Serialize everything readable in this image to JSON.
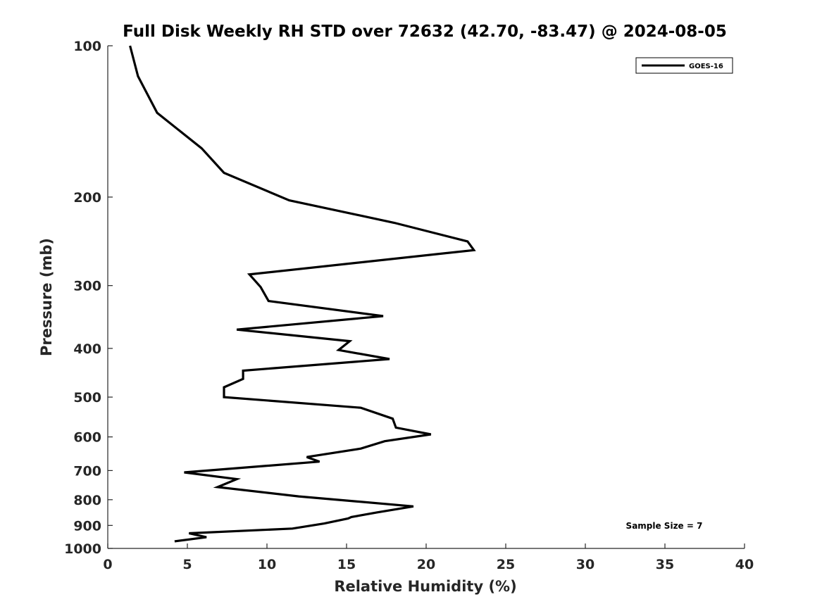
{
  "chart_data": {
    "type": "line",
    "title": "Full Disk Weekly RH STD over 72632 (42.70, -83.47) @ 2024-08-05",
    "xlabel": "Relative Humidity (%)",
    "ylabel": "Pressure (mb)",
    "xlim": [
      0,
      40
    ],
    "ylim": [
      100,
      1000
    ],
    "yscale": "log",
    "y_reversed": true,
    "grid": false,
    "xticks": [
      0,
      5,
      10,
      15,
      20,
      25,
      30,
      35,
      40
    ],
    "xtick_labels": [
      "0",
      "5",
      "10",
      "15",
      "20",
      "25",
      "30",
      "35",
      "40"
    ],
    "yticks": [
      100,
      200,
      300,
      400,
      500,
      600,
      700,
      800,
      900,
      1000
    ],
    "ytick_labels": [
      "100",
      "200",
      "300",
      "400",
      "500",
      "600",
      "700",
      "800",
      "900",
      "1000"
    ],
    "legend": {
      "position": "top-right",
      "entries": [
        "GOES-16"
      ]
    },
    "annotation": "Sample Size = 7",
    "series": [
      {
        "name": "GOES-16",
        "color": "#000000",
        "x": [
          1.4,
          1.9,
          3.1,
          5.9,
          7.3,
          11.4,
          18.0,
          22.6,
          23.0,
          8.9,
          9.6,
          10.1,
          17.3,
          8.1,
          15.2,
          14.5,
          17.7,
          8.5,
          8.5,
          7.3,
          7.3,
          15.9,
          17.9,
          18.1,
          20.3,
          17.4,
          15.9,
          12.5,
          13.3,
          4.8,
          8.1,
          6.9,
          12.0,
          19.2,
          16.9,
          15.3,
          15.1,
          13.6,
          11.6,
          5.1,
          6.2,
          4.2
        ],
        "y": [
          100,
          115,
          136,
          160,
          179,
          203,
          225,
          245,
          255,
          285,
          302,
          322,
          345,
          367,
          387,
          403,
          420,
          443,
          460,
          478,
          500,
          525,
          552,
          575,
          593,
          612,
          633,
          658,
          672,
          706,
          728,
          755,
          788,
          825,
          848,
          866,
          872,
          892,
          913,
          933,
          950,
          968
        ]
      }
    ]
  }
}
